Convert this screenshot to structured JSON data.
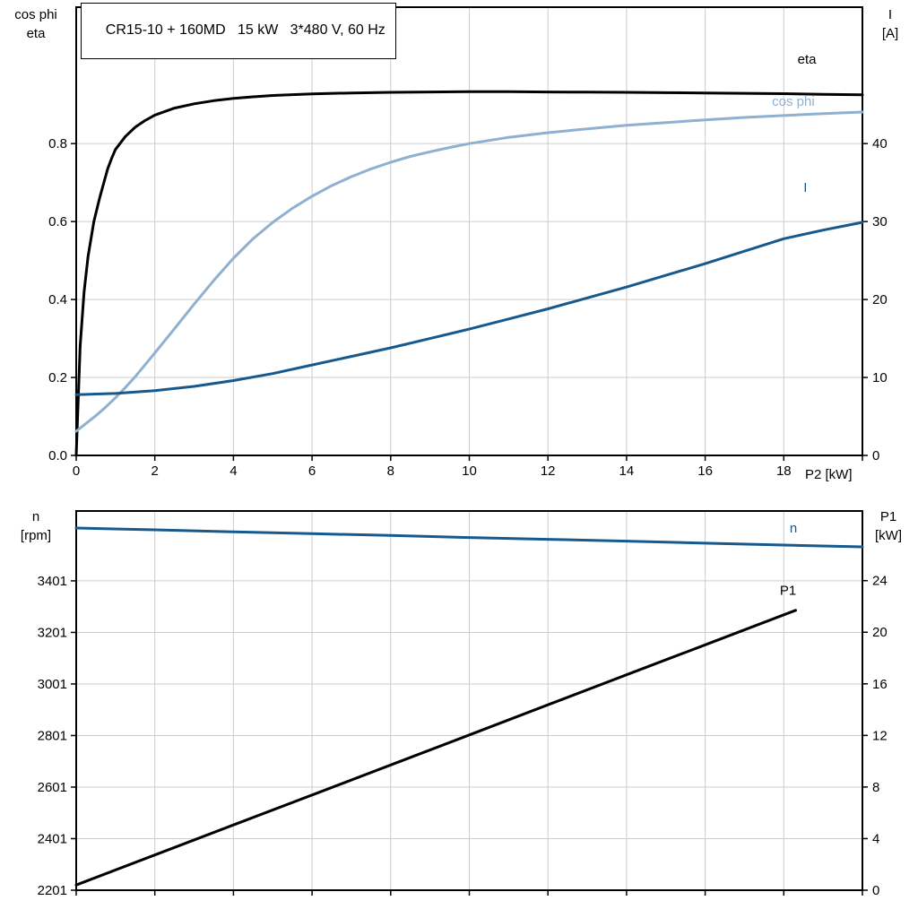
{
  "title_box": {
    "text": "CR15-10 + 160MD   15 kW   3*480 V, 60 Hz"
  },
  "colors": {
    "black": "#000000",
    "dark_blue": "#17598c",
    "light_blue": "#8fb0d0",
    "grid": "#cccccc"
  },
  "chart_data": [
    {
      "type": "line",
      "panel": "efficiency-cosphi-current",
      "x_axis": {
        "label": "P2 [kW]",
        "min": 0,
        "max": 20,
        "grid_step": 2,
        "tick_labels": [
          0,
          2,
          4,
          6,
          8,
          10,
          12,
          14,
          16,
          18
        ]
      },
      "y_left": {
        "title_lines": [
          "cos phi",
          "eta"
        ],
        "min": 0,
        "max": 1.15,
        "ticks": [
          0,
          0.2,
          0.4,
          0.6,
          0.8
        ],
        "decimals": 1
      },
      "y_right": {
        "title_lines": [
          "I",
          "[A]"
        ],
        "min": 0,
        "max": 57.5,
        "ticks": [
          0,
          10,
          20,
          30,
          40
        ],
        "decimals": 0
      },
      "series": [
        {
          "name": "eta",
          "label": "eta",
          "axis": "left",
          "color": "black",
          "label_at": [
            18.35,
            1.005
          ],
          "points": [
            [
              0,
              0
            ],
            [
              0.1,
              0.28
            ],
            [
              0.2,
              0.42
            ],
            [
              0.3,
              0.51
            ],
            [
              0.45,
              0.6
            ],
            [
              0.6,
              0.662
            ],
            [
              0.8,
              0.735
            ],
            [
              0.9,
              0.762
            ],
            [
              1,
              0.785
            ],
            [
              1.25,
              0.818
            ],
            [
              1.5,
              0.842
            ],
            [
              1.75,
              0.859
            ],
            [
              2,
              0.873
            ],
            [
              2.5,
              0.891
            ],
            [
              3,
              0.902
            ],
            [
              3.5,
              0.91
            ],
            [
              4,
              0.916
            ],
            [
              4.5,
              0.92
            ],
            [
              5,
              0.9235
            ],
            [
              6,
              0.9275
            ],
            [
              7,
              0.93
            ],
            [
              8,
              0.9315
            ],
            [
              9,
              0.9325
            ],
            [
              10,
              0.933
            ],
            [
              11,
              0.933
            ],
            [
              12,
              0.9325
            ],
            [
              13,
              0.932
            ],
            [
              14,
              0.9315
            ],
            [
              15,
              0.9305
            ],
            [
              16,
              0.93
            ],
            [
              17,
              0.929
            ],
            [
              18,
              0.928
            ],
            [
              19,
              0.9265
            ],
            [
              20,
              0.925
            ]
          ]
        },
        {
          "name": "cos-phi",
          "label": "cos phi",
          "axis": "left",
          "color": "light_blue",
          "label_at": [
            17.7,
            0.897
          ],
          "points": [
            [
              0,
              0.062
            ],
            [
              0.25,
              0.082
            ],
            [
              0.5,
              0.102
            ],
            [
              0.75,
              0.124
            ],
            [
              1,
              0.148
            ],
            [
              1.25,
              0.174
            ],
            [
              1.5,
              0.202
            ],
            [
              1.75,
              0.232
            ],
            [
              2,
              0.263
            ],
            [
              2.5,
              0.325
            ],
            [
              3,
              0.388
            ],
            [
              3.5,
              0.449
            ],
            [
              4,
              0.506
            ],
            [
              4.5,
              0.556
            ],
            [
              5,
              0.598
            ],
            [
              5.5,
              0.634
            ],
            [
              6,
              0.665
            ],
            [
              6.5,
              0.692
            ],
            [
              7,
              0.715
            ],
            [
              7.5,
              0.735
            ],
            [
              8,
              0.752
            ],
            [
              8.5,
              0.767
            ],
            [
              9,
              0.779
            ],
            [
              9.5,
              0.79
            ],
            [
              10,
              0.8
            ],
            [
              11,
              0.816
            ],
            [
              12,
              0.828
            ],
            [
              13,
              0.838
            ],
            [
              14,
              0.847
            ],
            [
              15,
              0.854
            ],
            [
              16,
              0.861
            ],
            [
              17,
              0.867
            ],
            [
              18,
              0.872
            ],
            [
              19,
              0.877
            ],
            [
              20,
              0.881
            ]
          ]
        },
        {
          "name": "current",
          "label": "I",
          "axis": "right",
          "color": "dark_blue",
          "label_at": [
            18.5,
            33.8
          ],
          "points": [
            [
              0,
              7.8
            ],
            [
              1,
              7.95
            ],
            [
              2,
              8.3
            ],
            [
              3,
              8.85
            ],
            [
              4,
              9.6
            ],
            [
              5,
              10.5
            ],
            [
              6,
              11.6
            ],
            [
              7,
              12.7
            ],
            [
              8,
              13.8
            ],
            [
              9,
              15.0
            ],
            [
              10,
              16.2
            ],
            [
              11,
              17.5
            ],
            [
              12,
              18.8
            ],
            [
              13,
              20.2
            ],
            [
              14,
              21.6
            ],
            [
              15,
              23.1
            ],
            [
              16,
              24.6
            ],
            [
              17,
              26.2
            ],
            [
              18,
              27.8
            ],
            [
              19,
              28.9
            ],
            [
              20,
              29.9
            ]
          ]
        }
      ]
    },
    {
      "type": "line",
      "panel": "speed-input-power",
      "x_axis": {
        "label": "",
        "min": 0,
        "max": 20,
        "grid_step": 2,
        "tick_labels": []
      },
      "y_left": {
        "title_lines": [
          "n",
          "[rpm]"
        ],
        "min": 2201,
        "max": 3672,
        "ticks": [
          2201,
          2401,
          2601,
          2801,
          3001,
          3201,
          3401
        ],
        "decimals": 0
      },
      "y_right": {
        "title_lines": [
          "P1",
          "[kW]"
        ],
        "min": 0,
        "max": 29.4,
        "ticks": [
          0,
          4,
          8,
          12,
          16,
          20,
          24
        ],
        "decimals": 0
      },
      "series": [
        {
          "name": "speed",
          "label": "n",
          "axis": "left",
          "color": "dark_blue",
          "label_at": [
            18.15,
            3589
          ],
          "points": [
            [
              0,
              3606
            ],
            [
              2,
              3599
            ],
            [
              4,
              3591
            ],
            [
              6,
              3584
            ],
            [
              8,
              3577
            ],
            [
              10,
              3569
            ],
            [
              12,
              3562
            ],
            [
              14,
              3555
            ],
            [
              16,
              3547
            ],
            [
              18,
              3540
            ],
            [
              20,
              3533
            ]
          ]
        },
        {
          "name": "input-power",
          "label": "P1",
          "axis": "right",
          "color": "black",
          "label_at": [
            17.9,
            22.9
          ],
          "points": [
            [
              0,
              0.4
            ],
            [
              2,
              2.73
            ],
            [
              4,
              5.06
            ],
            [
              6,
              7.38
            ],
            [
              8,
              9.71
            ],
            [
              10,
              12.04
            ],
            [
              12,
              14.37
            ],
            [
              14,
              16.7
            ],
            [
              16,
              19.02
            ],
            [
              18,
              21.35
            ],
            [
              18.3,
              21.7
            ]
          ]
        }
      ]
    }
  ]
}
